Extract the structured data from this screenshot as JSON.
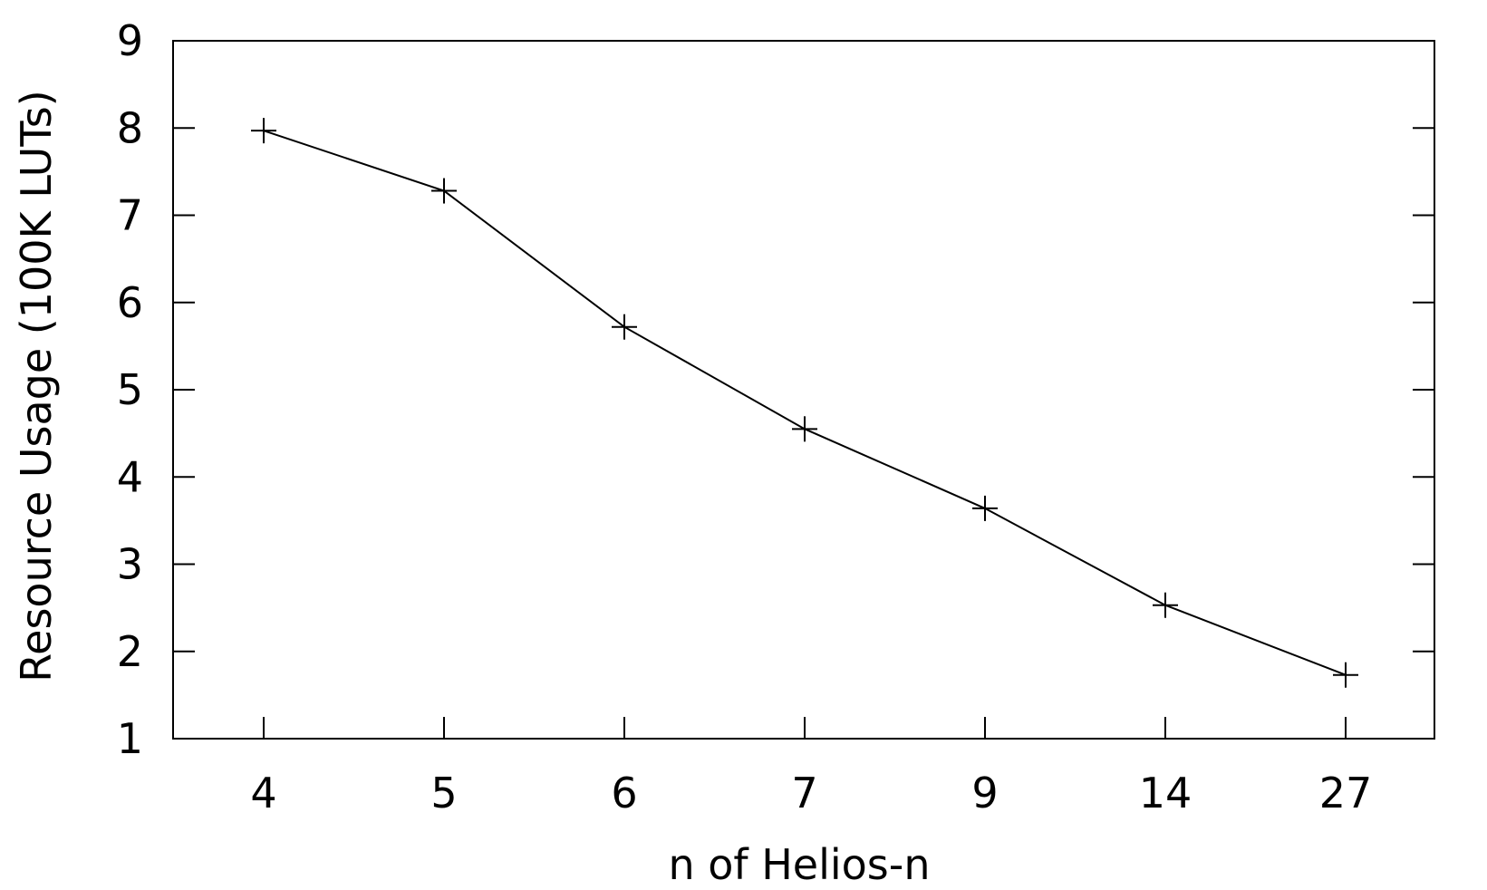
{
  "chart_data": {
    "type": "line",
    "title": "",
    "xlabel": "n of Helios-n",
    "ylabel": "Resource Usage (100K LUTs)",
    "categories": [
      "4",
      "5",
      "6",
      "7",
      "9",
      "14",
      "27"
    ],
    "series": [
      {
        "values": [
          7.97,
          7.28,
          5.72,
          4.55,
          3.64,
          2.53,
          1.73
        ],
        "marker": "plus",
        "color": "#000000"
      }
    ],
    "ylim": [
      1,
      9
    ],
    "yticks": [
      1,
      2,
      3,
      4,
      5,
      6,
      7,
      8,
      9
    ],
    "grid": false,
    "legend": "none"
  }
}
